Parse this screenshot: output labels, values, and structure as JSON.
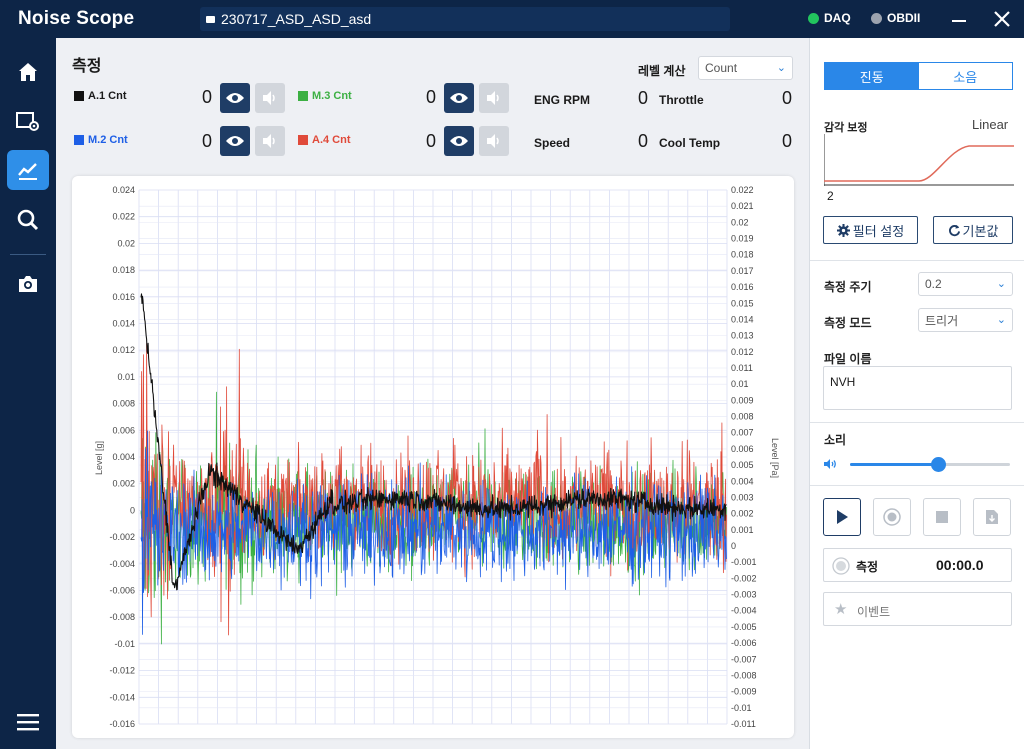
{
  "app": {
    "title": "Noise Scope",
    "file": "230717_ASD_ASD_asd"
  },
  "status": {
    "daq": "DAQ",
    "daq_color": "#22c55e",
    "obd": "OBDII",
    "obd_color": "#9ca3af"
  },
  "sidebar": {
    "icons": [
      "home-icon",
      "settings-screen-icon",
      "chart-icon",
      "search-icon",
      "camera-icon",
      "menu-icon"
    ]
  },
  "measure": {
    "title": "측정",
    "level_label": "레벨 계산",
    "level_select": "Count",
    "channels": [
      {
        "label": "A.1 Cnt",
        "value": "0",
        "color": "#111111"
      },
      {
        "label": "M.3 Cnt",
        "value": "0",
        "color": "#3cb043"
      },
      {
        "label": "M.2 Cnt",
        "value": "0",
        "color": "#1e5fe6"
      },
      {
        "label": "A.4 Cnt",
        "value": "0",
        "color": "#e04a3a"
      }
    ],
    "info": [
      {
        "label": "ENG RPM",
        "value": "0"
      },
      {
        "label": "Throttle",
        "value": "0"
      },
      {
        "label": "Speed",
        "value": "0"
      },
      {
        "label": "Cool Temp",
        "value": "0"
      }
    ]
  },
  "chart_data": {
    "type": "line",
    "ylabel": "Level [g]",
    "y2label": "Level [Pa]",
    "ylim": [
      -0.016,
      0.024
    ],
    "y2lim": [
      -0.011,
      0.022
    ],
    "yticks": [
      "0.024",
      "0.022",
      "0.02",
      "0.018",
      "0.016",
      "0.014",
      "0.012",
      "0.01",
      "0.008",
      "0.006",
      "0.004",
      "0.002",
      "0",
      "-0.002",
      "-0.004",
      "-0.006",
      "-0.008",
      "-0.01",
      "-0.012",
      "-0.014",
      "-0.016"
    ],
    "y2ticks": [
      "0.022",
      "0.021",
      "0.02",
      "0.019",
      "0.018",
      "0.017",
      "0.016",
      "0.015",
      "0.014",
      "0.013",
      "0.012",
      "0.011",
      "0.01",
      "0.009",
      "0.008",
      "0.007",
      "0.006",
      "0.005",
      "0.004",
      "0.003",
      "0.002",
      "0.001",
      "0",
      "-0.001",
      "-0.002",
      "-0.003",
      "-0.004",
      "-0.005",
      "-0.006",
      "-0.007",
      "-0.008",
      "-0.009",
      "-0.01",
      "-0.011"
    ],
    "grid": true,
    "series": [
      {
        "name": "A.1 Cnt",
        "color": "#111111"
      },
      {
        "name": "M.3 Cnt",
        "color": "#3cb043"
      },
      {
        "name": "M.2 Cnt",
        "color": "#1e5fe6"
      },
      {
        "name": "A.4 Cnt",
        "color": "#e04a3a"
      }
    ]
  },
  "right": {
    "tab_vibration": "진동",
    "tab_sound": "소음",
    "weight_label": "감각 보정",
    "weight_value": "Linear",
    "curve_number": "2",
    "filter_button": "필터 설정",
    "default_button": "기본값",
    "period_label": "측정 주기",
    "period_value": "0.2",
    "mode_label": "측정 모드",
    "mode_value": "트리거",
    "filename_label": "파일 이름",
    "filename_value": "NVH",
    "sound_label": "소리",
    "volume": 0.55,
    "measure_label": "측정",
    "measure_time": "00:00.0",
    "event_label": "이벤트"
  }
}
